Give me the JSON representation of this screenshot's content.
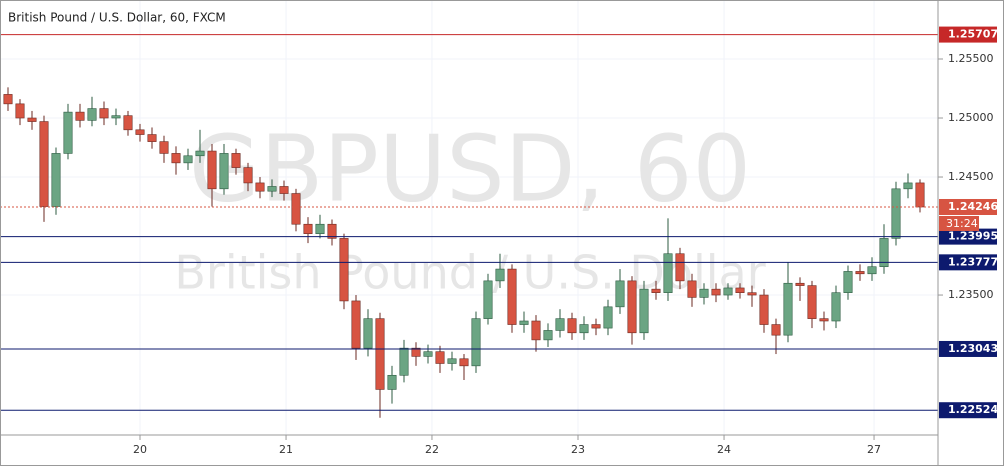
{
  "chart_data": {
    "type": "candlestick",
    "title": "British Pound / U.S. Dollar, 60, FXCM",
    "watermark": {
      "symbol": "GBPUSD, 60",
      "name": "British Pound / U.S. Dollar"
    },
    "up_color": "#6ba583",
    "down_color": "#d75442",
    "open": [
      1.252,
      1.2512,
      1.25,
      1.2497,
      1.2425,
      1.247,
      1.2505,
      1.2498,
      1.2508,
      1.25,
      1.2502,
      1.249,
      1.2486,
      1.248,
      1.247,
      1.2462,
      1.2468,
      1.2472,
      1.244,
      1.247,
      1.2458,
      1.2445,
      1.2438,
      1.2442,
      1.2436,
      1.241,
      1.2402,
      1.241,
      1.2398,
      1.2345,
      1.2305,
      1.233,
      1.227,
      1.2282,
      1.2305,
      1.2298,
      1.2302,
      1.2292,
      1.2296,
      1.229,
      1.233,
      1.2362,
      1.2372,
      1.2325,
      1.2328,
      1.2312,
      1.232,
      1.233,
      1.2318,
      1.2325,
      1.2322,
      1.234,
      1.2362,
      1.2318,
      1.2355,
      1.2352,
      1.2385,
      1.2362,
      1.2348,
      1.2355,
      1.235,
      1.2356,
      1.2352,
      1.235,
      1.2325,
      1.2316,
      1.236,
      1.2358,
      1.233,
      1.2328,
      1.2352,
      1.237,
      1.2368,
      1.2374,
      1.2398,
      1.244,
      1.2445
    ],
    "high": [
      1.2526,
      1.2516,
      1.2506,
      1.2502,
      1.2475,
      1.2512,
      1.2512,
      1.2518,
      1.2514,
      1.2508,
      1.2506,
      1.2495,
      1.2492,
      1.2485,
      1.2476,
      1.2474,
      1.249,
      1.2478,
      1.2478,
      1.2474,
      1.2462,
      1.245,
      1.2448,
      1.2447,
      1.244,
      1.2416,
      1.2418,
      1.2414,
      1.2402,
      1.235,
      1.2338,
      1.2335,
      1.229,
      1.2312,
      1.231,
      1.2308,
      1.2307,
      1.2302,
      1.23,
      1.2336,
      1.2368,
      1.2385,
      1.2376,
      1.2336,
      1.2333,
      1.2326,
      1.2338,
      1.2335,
      1.2332,
      1.233,
      1.2346,
      1.2372,
      1.2366,
      1.2362,
      1.2362,
      1.2415,
      1.239,
      1.2368,
      1.236,
      1.236,
      1.236,
      1.236,
      1.2358,
      1.2355,
      1.233,
      1.2378,
      1.2365,
      1.2362,
      1.2336,
      1.2358,
      1.2375,
      1.2376,
      1.2382,
      1.241,
      1.2446,
      1.2453,
      1.2448
    ],
    "low": [
      1.2506,
      1.2494,
      1.249,
      1.2412,
      1.2418,
      1.2465,
      1.2492,
      1.2493,
      1.2494,
      1.2494,
      1.2485,
      1.248,
      1.2474,
      1.2462,
      1.2452,
      1.2456,
      1.2462,
      1.2425,
      1.2435,
      1.2452,
      1.2438,
      1.2432,
      1.2433,
      1.243,
      1.2404,
      1.2394,
      1.2398,
      1.2392,
      1.2338,
      1.2295,
      1.2298,
      1.2246,
      1.2258,
      1.2276,
      1.229,
      1.2292,
      1.2284,
      1.2286,
      1.2278,
      1.2284,
      1.2325,
      1.2356,
      1.2318,
      1.2318,
      1.2302,
      1.2306,
      1.2314,
      1.2312,
      1.2312,
      1.2316,
      1.2316,
      1.2334,
      1.2308,
      1.2312,
      1.2346,
      1.2345,
      1.2355,
      1.234,
      1.2342,
      1.2344,
      1.2346,
      1.2347,
      1.234,
      1.2318,
      1.23,
      1.231,
      1.2345,
      1.2322,
      1.232,
      1.2322,
      1.2346,
      1.2362,
      1.2362,
      1.2368,
      1.2392,
      1.2432,
      1.242
    ],
    "close": [
      1.2512,
      1.25,
      1.2497,
      1.2425,
      1.247,
      1.2505,
      1.2498,
      1.2508,
      1.25,
      1.2502,
      1.249,
      1.2486,
      1.248,
      1.247,
      1.2462,
      1.2468,
      1.2472,
      1.244,
      1.247,
      1.2458,
      1.2445,
      1.2438,
      1.2442,
      1.2436,
      1.241,
      1.2402,
      1.241,
      1.2398,
      1.2345,
      1.2305,
      1.233,
      1.227,
      1.2282,
      1.2305,
      1.2298,
      1.2302,
      1.2292,
      1.2296,
      1.229,
      1.233,
      1.2362,
      1.2372,
      1.2325,
      1.2328,
      1.2312,
      1.232,
      1.233,
      1.2318,
      1.2325,
      1.2322,
      1.234,
      1.2362,
      1.2318,
      1.2355,
      1.2352,
      1.2385,
      1.2362,
      1.2348,
      1.2355,
      1.235,
      1.2356,
      1.2352,
      1.235,
      1.2325,
      1.2316,
      1.236,
      1.2358,
      1.233,
      1.2328,
      1.2352,
      1.237,
      1.2368,
      1.2374,
      1.2398,
      1.244,
      1.2445,
      1.24246
    ],
    "xlim": [
      -0.667,
      77.5
    ],
    "xticks": [
      {
        "value": 11,
        "label": "20"
      },
      {
        "value": 23.17,
        "label": "21"
      },
      {
        "value": 35.33,
        "label": "22"
      },
      {
        "value": 47.5,
        "label": "23"
      },
      {
        "value": 59.67,
        "label": "24"
      },
      {
        "value": 72.17,
        "label": "27"
      }
    ],
    "ylim": [
      1.22314,
      1.26
    ],
    "yticks": [
      {
        "value": 1.255,
        "label": "1.25500"
      },
      {
        "value": 1.25,
        "label": "1.25000"
      },
      {
        "value": 1.245,
        "label": "1.24500"
      },
      {
        "value": 1.235,
        "label": "1.23500"
      }
    ],
    "levels": [
      {
        "value": 1.25707,
        "color": "#c62828"
      },
      {
        "value": 1.23995,
        "color": "#0d1a6e"
      },
      {
        "value": 1.23777,
        "color": "#0d1a6e"
      },
      {
        "value": 1.23043,
        "color": "#0d1a6e"
      },
      {
        "value": 1.22524,
        "color": "#0d1a6e"
      }
    ],
    "last_price": {
      "value": 1.24246,
      "color": "#d75442",
      "countdown": "31:24"
    }
  }
}
